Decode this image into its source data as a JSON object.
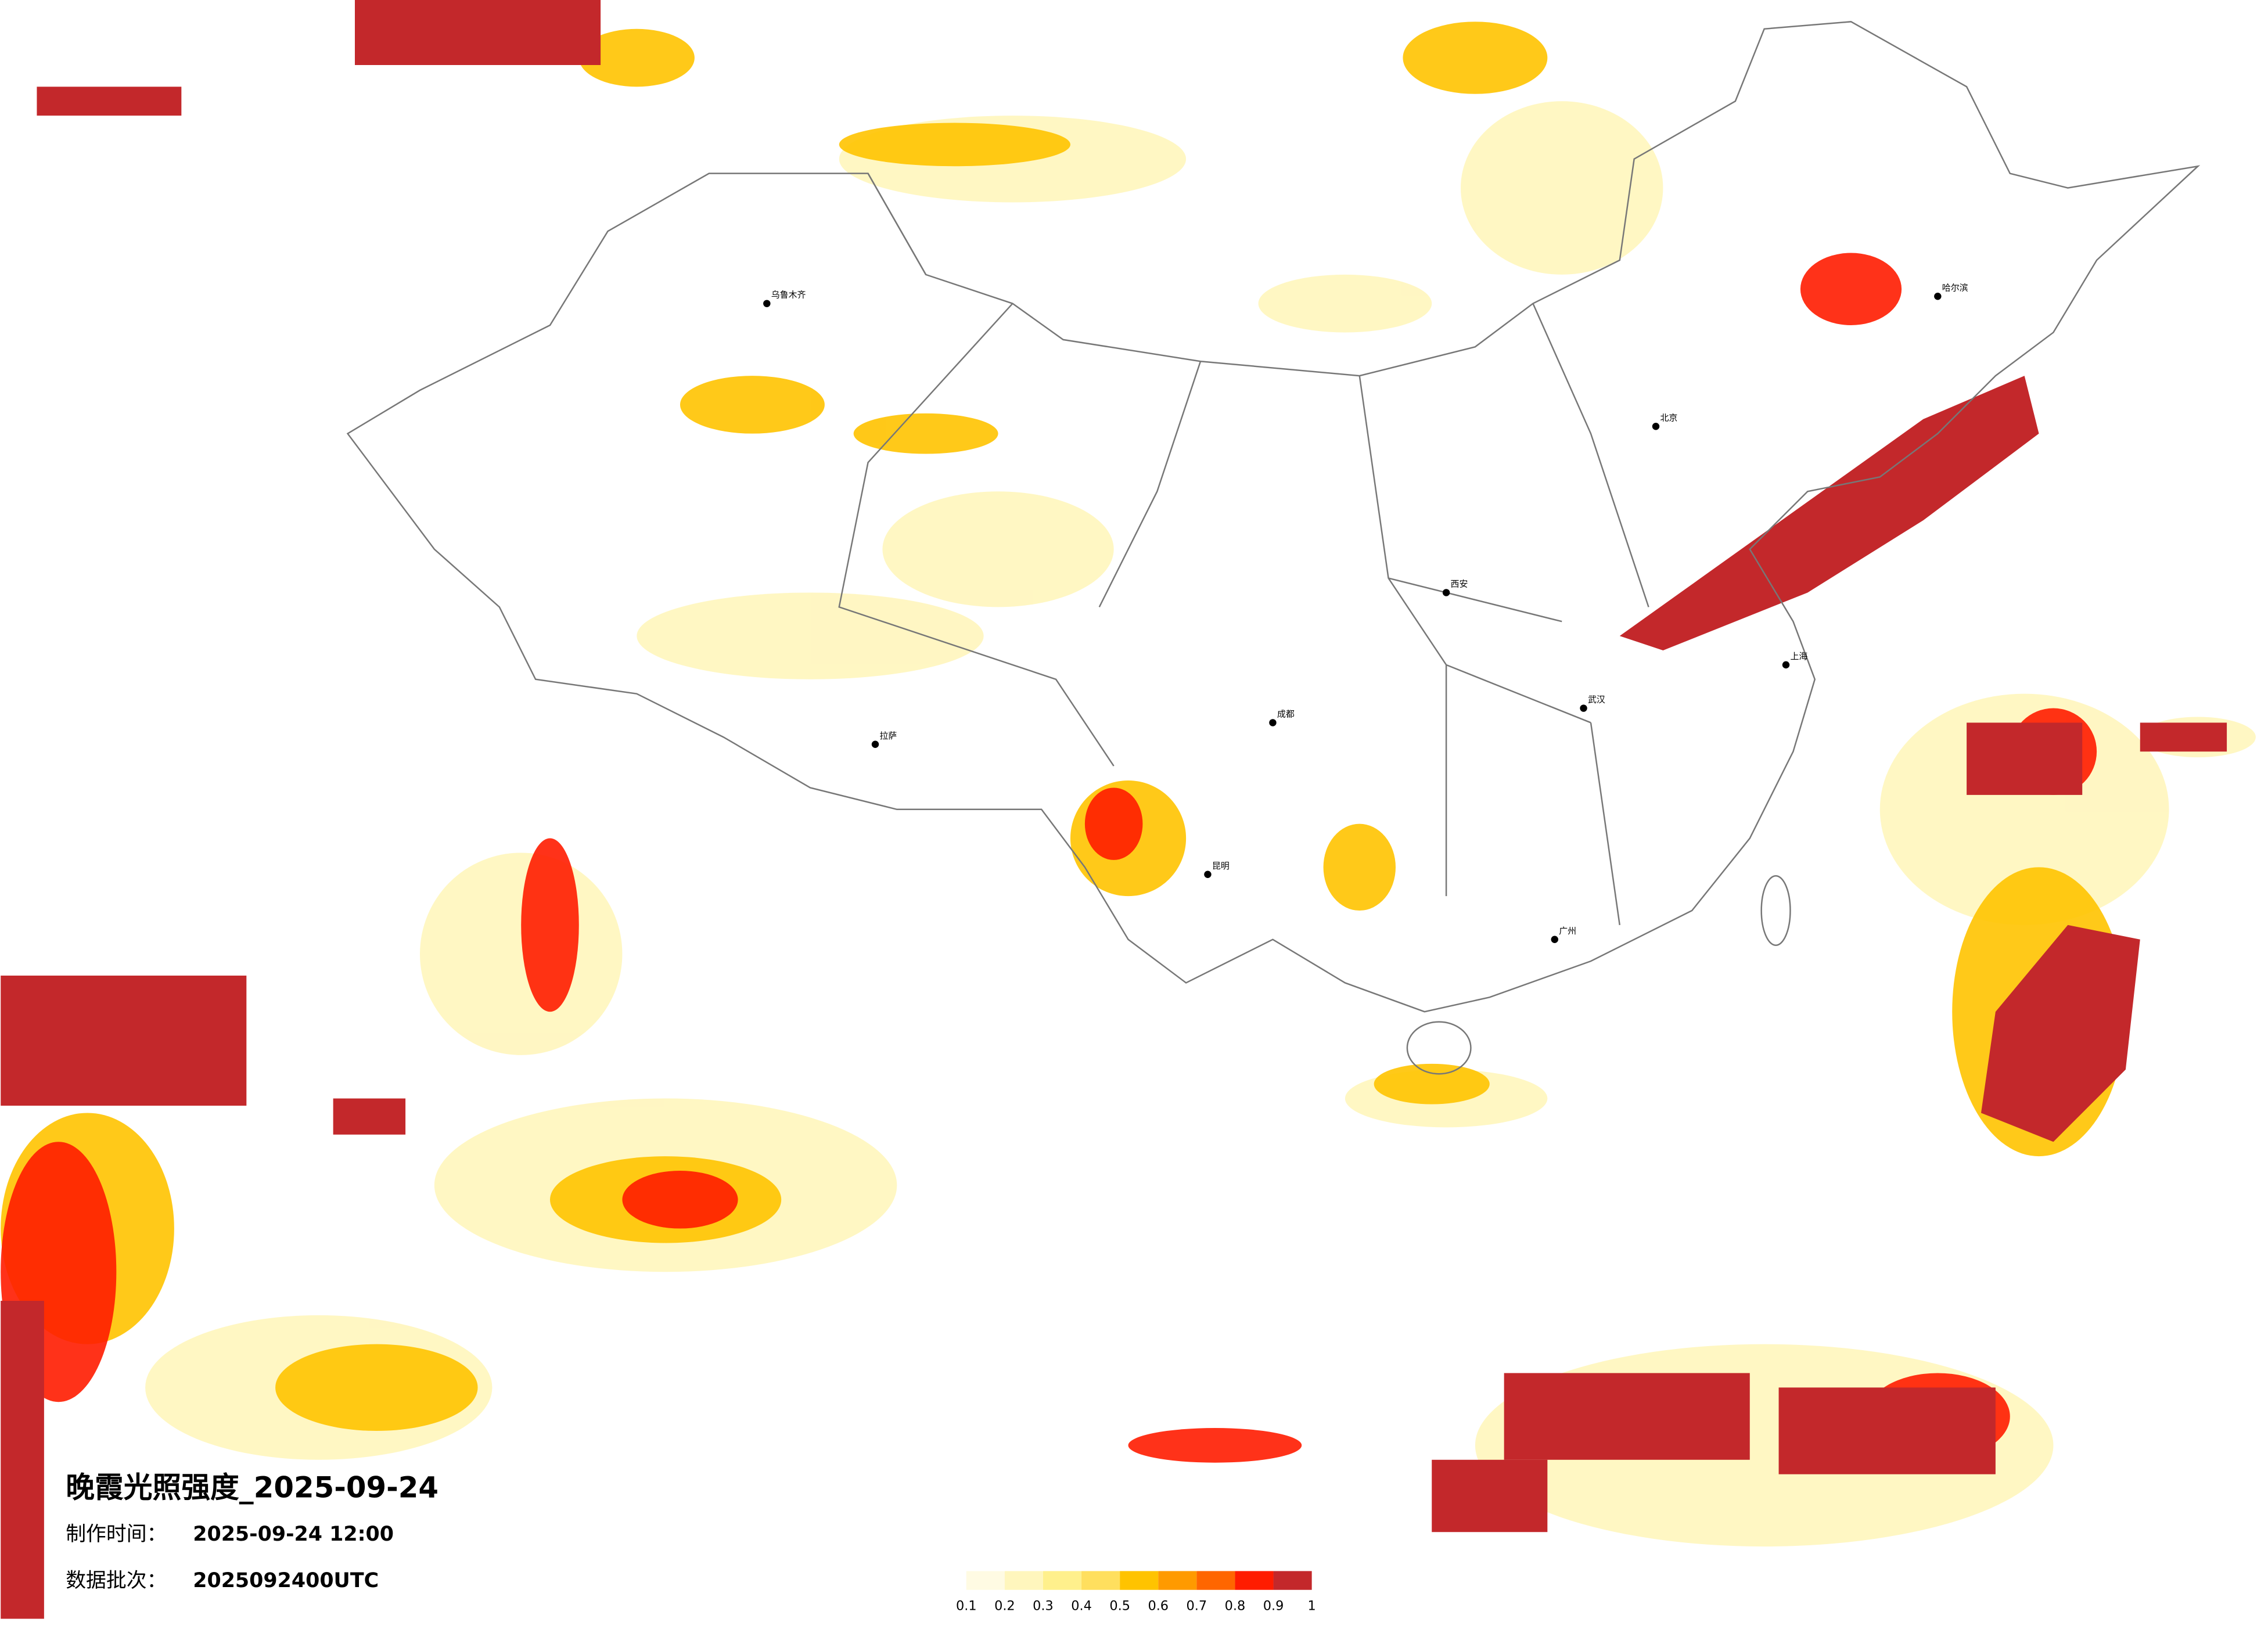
{
  "header": {
    "title": "晚霞光照强度_2025-09-24",
    "made_label": "制作时间：",
    "made_value": "2025-09-24 12:00",
    "batch_label": "数据批次：",
    "batch_value": "2025092400UTC"
  },
  "legend": {
    "ticks": [
      0.1,
      0.2,
      0.3,
      0.4,
      0.5,
      0.6,
      0.7,
      0.8,
      0.9,
      1
    ],
    "colors": [
      "#fffbe3",
      "#fff6bd",
      "#fff08c",
      "#ffdf5e",
      "#ffc300",
      "#ff9a00",
      "#ff6600",
      "#ff1c00",
      "#c3282b"
    ]
  },
  "cities": [
    "北京",
    "上海",
    "广州",
    "哈尔滨",
    "乌鲁木齐",
    "拉萨",
    "成都",
    "西安",
    "武汉",
    "昆明"
  ]
}
